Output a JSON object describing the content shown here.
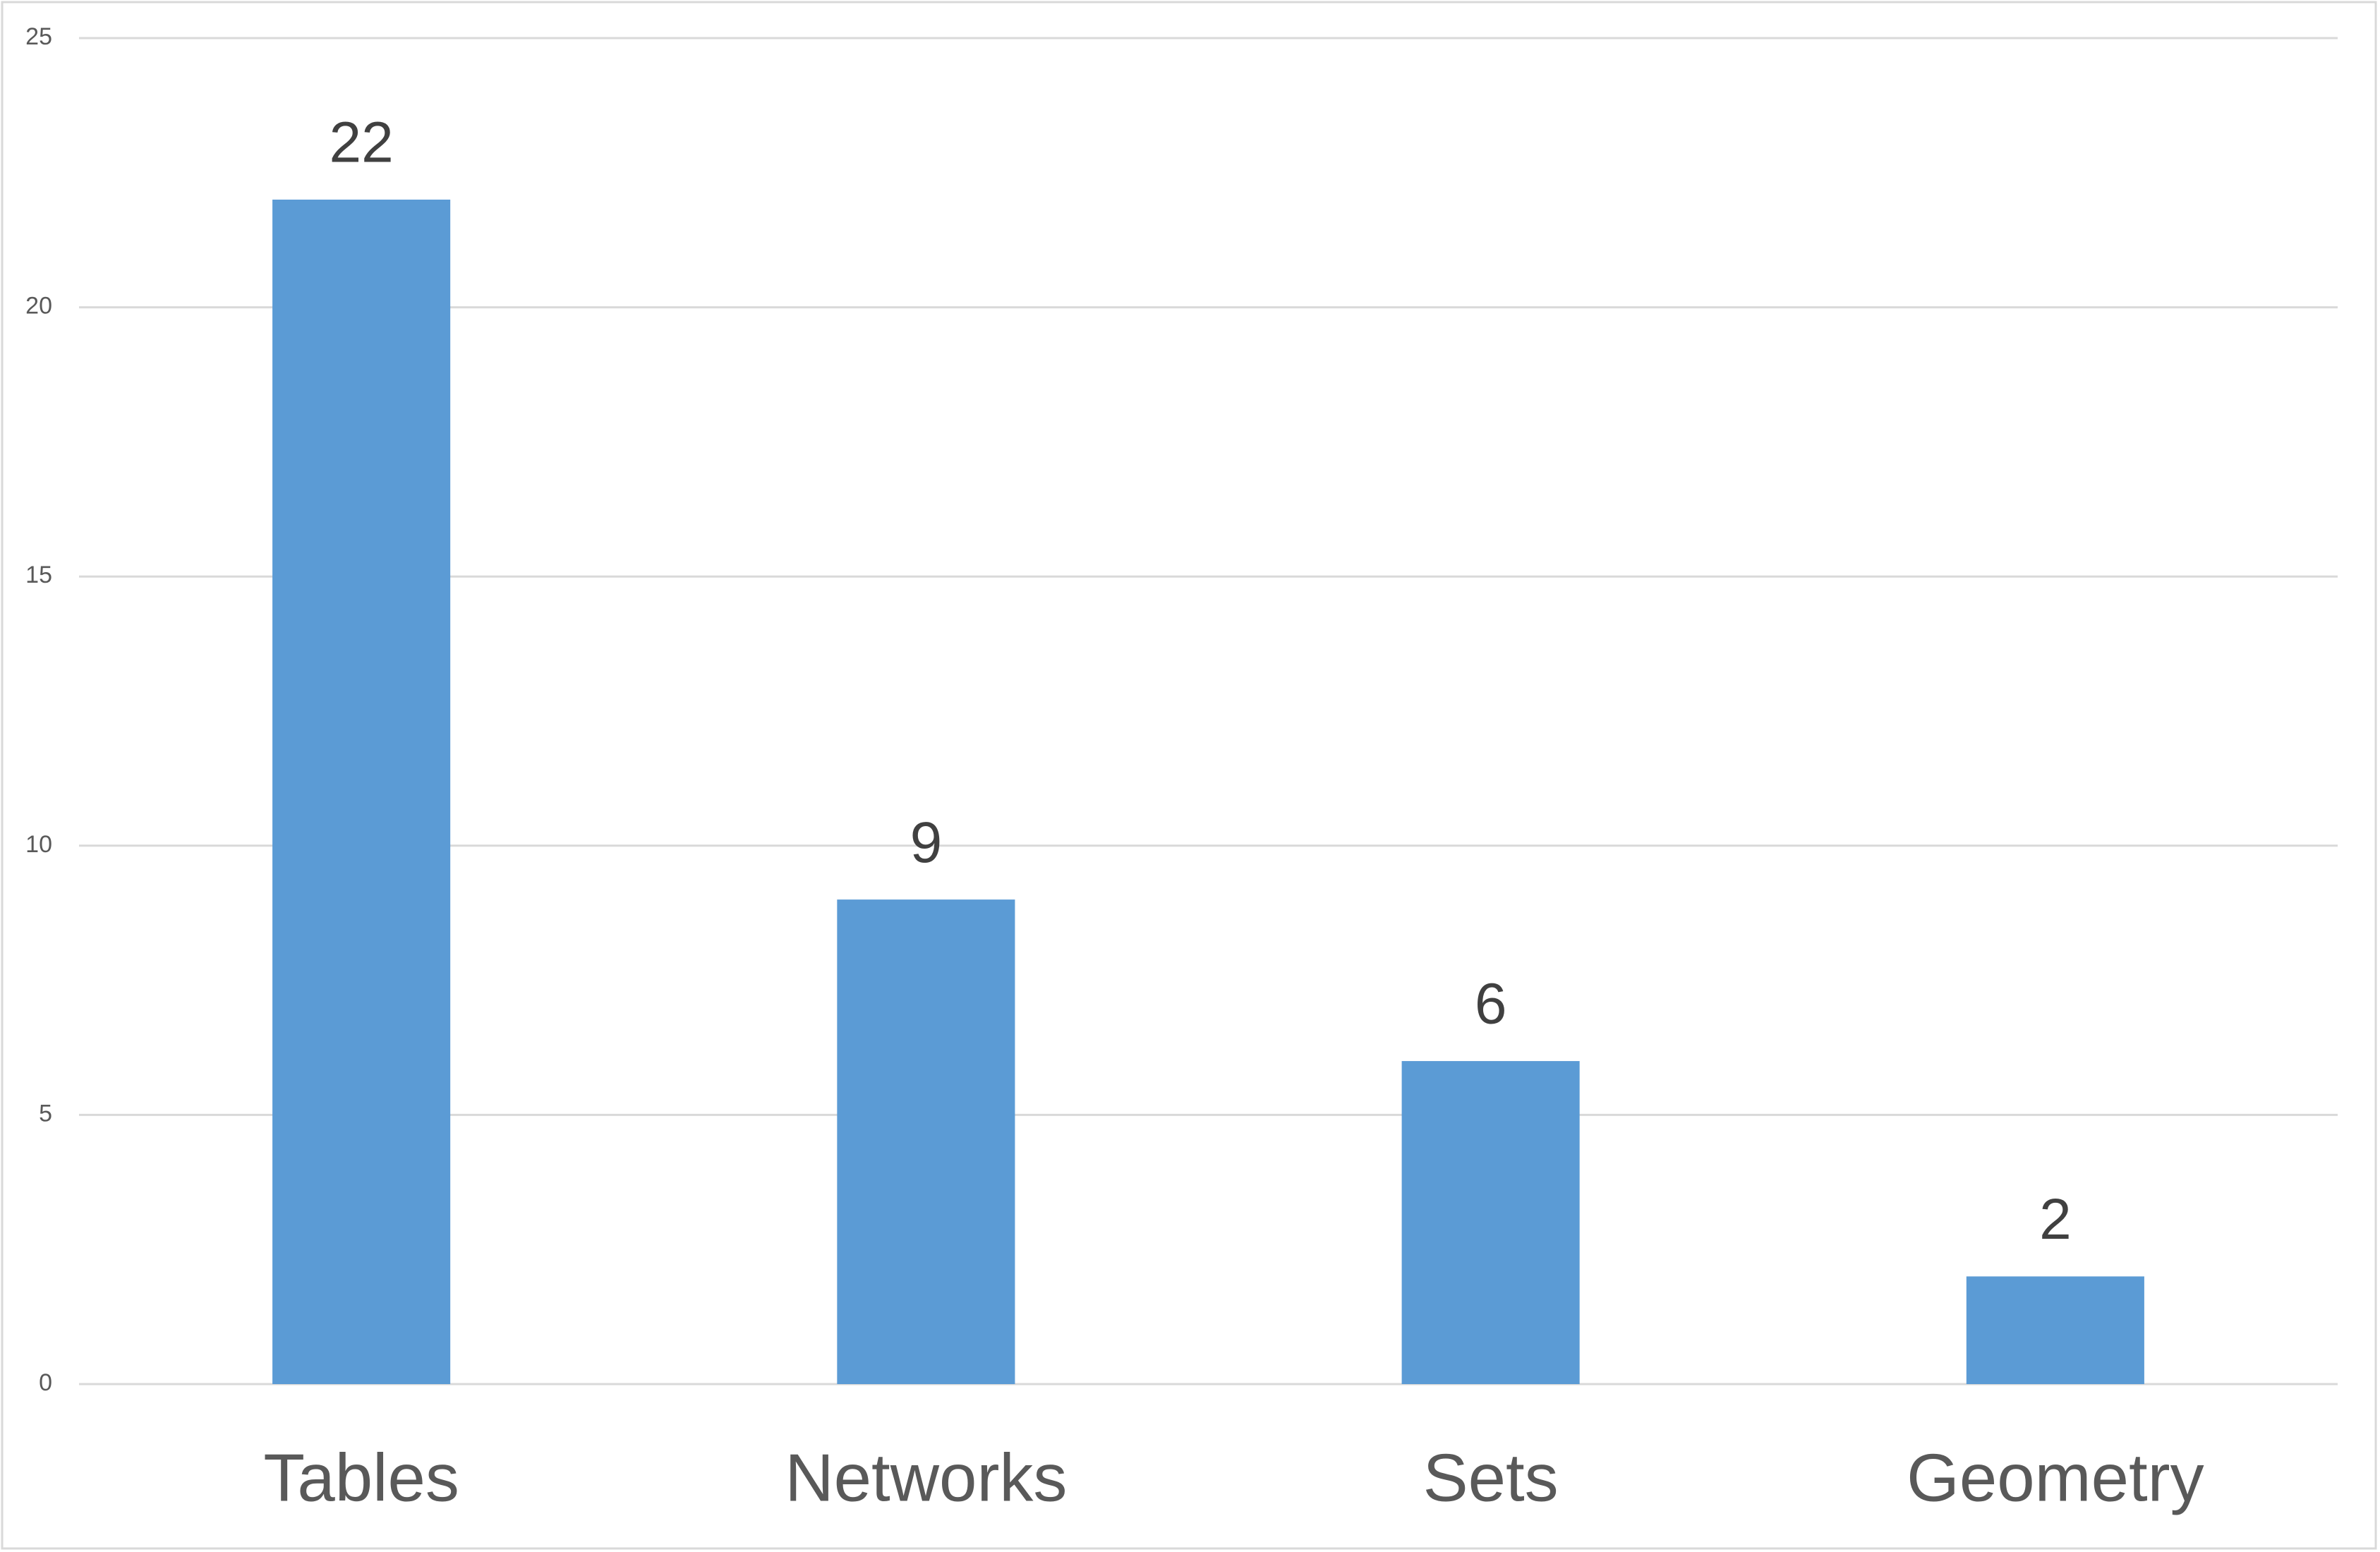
{
  "chart_data": {
    "type": "bar",
    "categories": [
      "Tables",
      "Networks",
      "Sets",
      "Geometry"
    ],
    "values": [
      22,
      9,
      6,
      2
    ],
    "color": "#5b9bd5",
    "ylim": [
      0,
      25
    ],
    "yticks": [
      0,
      5,
      10,
      15,
      20,
      25
    ],
    "grid": true
  }
}
